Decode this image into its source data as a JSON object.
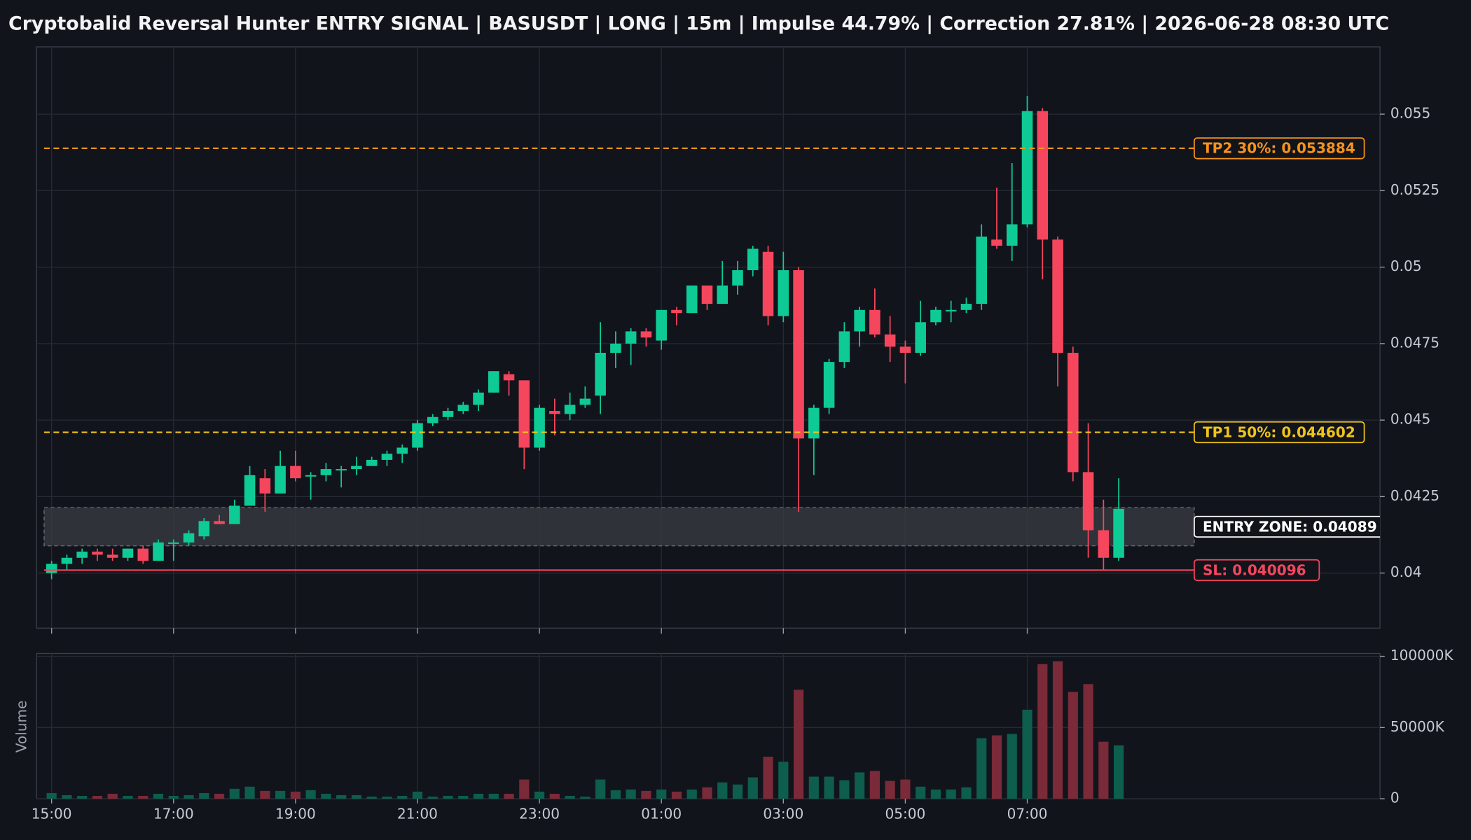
{
  "chart_data": [
    {
      "type": "candlestick",
      "title": "Cryptobalid Reversal Hunter ENTRY SIGNAL | BASUSDT | LONG | 15m | Impulse 44.79% | Correction 27.81% | 2026-06-28 08:30 UTC",
      "categories": [
        "15:00",
        null,
        null,
        null,
        null,
        null,
        null,
        null,
        "17:00",
        null,
        null,
        null,
        null,
        null,
        null,
        null,
        "19:00",
        null,
        null,
        null,
        null,
        null,
        null,
        null,
        "21:00",
        null,
        null,
        null,
        null,
        null,
        null,
        null,
        "23:00",
        null,
        null,
        null,
        null,
        null,
        null,
        null,
        "01:00",
        null,
        null,
        null,
        null,
        null,
        null,
        null,
        "03:00",
        null,
        null,
        null,
        null,
        null,
        null,
        null,
        "05:00",
        null,
        null,
        null,
        null,
        null,
        null,
        null,
        "07:00",
        null,
        null,
        null,
        null,
        null,
        null
      ],
      "open": [
        0.04,
        0.0403,
        0.0405,
        0.0407,
        0.0406,
        0.0405,
        0.0408,
        0.0404,
        0.041,
        0.041,
        0.0412,
        0.0417,
        0.0416,
        0.0422,
        0.0431,
        0.0426,
        0.0435,
        0.0432,
        0.0432,
        0.0434,
        0.0434,
        0.0435,
        0.0437,
        0.0439,
        0.0441,
        0.0449,
        0.0451,
        0.0453,
        0.0455,
        0.0459,
        0.0465,
        0.0463,
        0.0441,
        0.0453,
        0.0452,
        0.0455,
        0.0458,
        0.0472,
        0.0475,
        0.0479,
        0.0476,
        0.0486,
        0.0485,
        0.0494,
        0.0488,
        0.0494,
        0.0499,
        0.0505,
        0.0484,
        0.0499,
        0.0444,
        0.0454,
        0.0469,
        0.0479,
        0.0486,
        0.0478,
        0.0474,
        0.0472,
        0.0482,
        0.0486,
        0.0486,
        0.0488,
        0.0509,
        0.0507,
        0.0514,
        0.0551,
        0.0509,
        0.0472,
        0.0433,
        0.0414,
        0.0405
      ],
      "high": [
        0.0404,
        0.0406,
        0.0408,
        0.0408,
        0.0408,
        0.0408,
        0.0409,
        0.0411,
        0.0411,
        0.0414,
        0.0418,
        0.0419,
        0.0424,
        0.0435,
        0.0434,
        0.044,
        0.044,
        0.0433,
        0.0436,
        0.0435,
        0.0438,
        0.0438,
        0.044,
        0.0442,
        0.045,
        0.0452,
        0.0454,
        0.0456,
        0.046,
        0.0466,
        0.0466,
        0.0463,
        0.0455,
        0.0457,
        0.0459,
        0.0461,
        0.0482,
        0.0479,
        0.048,
        0.048,
        0.0486,
        0.0487,
        0.0494,
        0.0494,
        0.0502,
        0.0502,
        0.0507,
        0.0507,
        0.0505,
        0.05,
        0.0455,
        0.047,
        0.0482,
        0.0487,
        0.0493,
        0.0484,
        0.0476,
        0.0489,
        0.0487,
        0.0489,
        0.049,
        0.0514,
        0.0526,
        0.0534,
        0.0556,
        0.0552,
        0.051,
        0.0474,
        0.0449,
        0.0424,
        0.0431
      ],
      "low": [
        0.0398,
        0.0401,
        0.0403,
        0.0404,
        0.0404,
        0.0404,
        0.0403,
        0.0404,
        0.0404,
        0.0409,
        0.0411,
        0.0416,
        0.0416,
        0.0422,
        0.042,
        0.0426,
        0.043,
        0.0424,
        0.043,
        0.0428,
        0.0432,
        0.0435,
        0.0435,
        0.0436,
        0.044,
        0.0448,
        0.045,
        0.0452,
        0.0453,
        0.0459,
        0.0458,
        0.0434,
        0.044,
        0.0445,
        0.045,
        0.0454,
        0.0452,
        0.0467,
        0.0468,
        0.0474,
        0.0473,
        0.0481,
        0.0485,
        0.0486,
        0.0488,
        0.0491,
        0.0497,
        0.0481,
        0.0482,
        0.042,
        0.0432,
        0.0452,
        0.0467,
        0.0474,
        0.0477,
        0.0469,
        0.0462,
        0.0471,
        0.0481,
        0.0482,
        0.0485,
        0.0486,
        0.0506,
        0.0502,
        0.0513,
        0.0496,
        0.0461,
        0.043,
        0.0405,
        0.0401,
        0.0404
      ],
      "close": [
        0.0403,
        0.0405,
        0.0407,
        0.0406,
        0.0405,
        0.0408,
        0.0404,
        0.041,
        0.041,
        0.0413,
        0.0417,
        0.0416,
        0.0422,
        0.0432,
        0.0426,
        0.0435,
        0.0431,
        0.0432,
        0.0434,
        0.0434,
        0.0435,
        0.0437,
        0.0439,
        0.0441,
        0.0449,
        0.0451,
        0.0453,
        0.0455,
        0.0459,
        0.0466,
        0.0463,
        0.0441,
        0.0454,
        0.0452,
        0.0455,
        0.0457,
        0.0472,
        0.0475,
        0.0479,
        0.0477,
        0.0486,
        0.0485,
        0.0494,
        0.0488,
        0.0494,
        0.0499,
        0.0506,
        0.0484,
        0.0499,
        0.0444,
        0.0454,
        0.0469,
        0.0479,
        0.0486,
        0.0478,
        0.0474,
        0.0472,
        0.0482,
        0.0486,
        0.0486,
        0.0488,
        0.051,
        0.0507,
        0.0514,
        0.0551,
        0.0509,
        0.0472,
        0.0433,
        0.0414,
        0.0405,
        0.0421
      ],
      "up_color": "#0ecb95",
      "down_color": "#f6465d",
      "ylim": [
        0.0382,
        0.0572
      ],
      "yticks": [
        0.04,
        0.0425,
        0.045,
        0.0475,
        0.05,
        0.0525,
        0.055
      ],
      "grid": true,
      "levels": [
        {
          "label": "TP2 30%: 0.053884",
          "value": 0.053884,
          "color": "#f7931a",
          "style": "dashed"
        },
        {
          "label": "TP1 50%: 0.044602",
          "value": 0.044602,
          "color": "#f0c419",
          "style": "dashed"
        },
        {
          "label": "SL: 0.040096",
          "value": 0.040096,
          "color": "#f6465d",
          "style": "solid"
        }
      ],
      "entry_zone": {
        "label": "ENTRY ZONE: 0.04089",
        "low": 0.04089,
        "high": 0.04214
      }
    },
    {
      "type": "bar",
      "ylabel": "Volume",
      "values": [
        4000000,
        2500000,
        2000000,
        2000000,
        3500000,
        2000000,
        2000000,
        3500000,
        2000000,
        2500000,
        4000000,
        3500000,
        7000000,
        8500000,
        5500000,
        5500000,
        5000000,
        6000000,
        3500000,
        2500000,
        2500000,
        1500000,
        1500000,
        2000000,
        5000000,
        1500000,
        2000000,
        2000000,
        3500000,
        3500000,
        3500000,
        13500000,
        5000000,
        3500000,
        2000000,
        1500000,
        13500000,
        6000000,
        6500000,
        5500000,
        6500000,
        5000000,
        6500000,
        8000000,
        11500000,
        10000000,
        15000000,
        29500000,
        26000000,
        76500000,
        15500000,
        15500000,
        13000000,
        18500000,
        19500000,
        12500000,
        13500000,
        8500000,
        6500000,
        6500000,
        8000000,
        42500000,
        44500000,
        45500000,
        62500000,
        94500000,
        96500000,
        75000000,
        80500000,
        40000000,
        37500000
      ],
      "up_color": "#0d5e4c",
      "down_color": "#7a2a38",
      "ylim": [
        0,
        102000000
      ],
      "yticks": [
        0,
        {
          "value": 50000000,
          "label": "50000K"
        },
        {
          "value": 100000000,
          "label": "100000K"
        }
      ],
      "grid": true
    }
  ]
}
